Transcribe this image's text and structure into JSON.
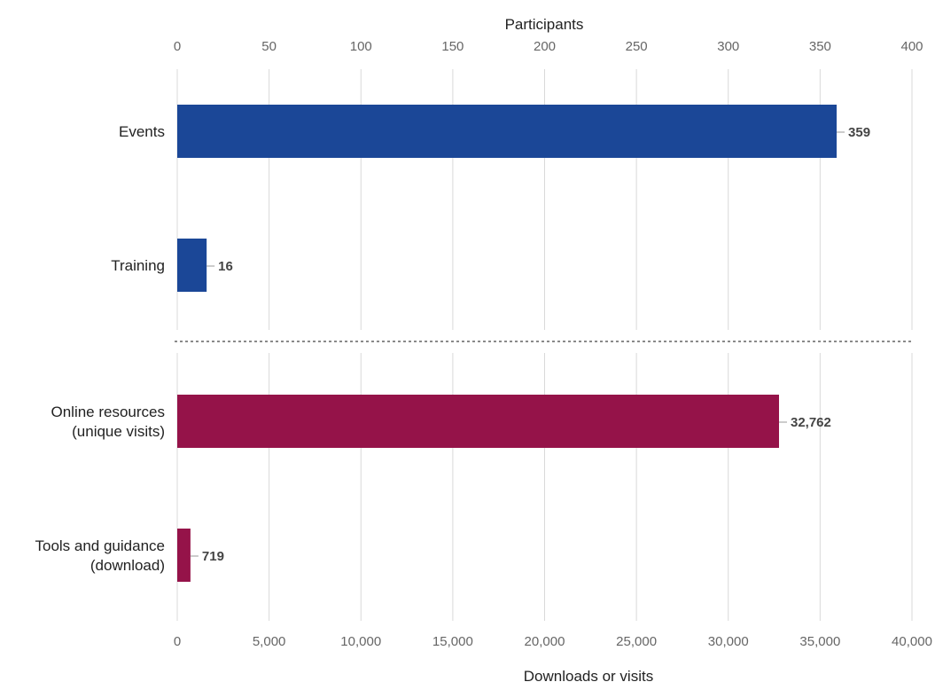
{
  "chart_data": {
    "type": "bar",
    "orientation": "horizontal",
    "grid": true,
    "legend": "none",
    "panels": [
      {
        "axis_position": "top",
        "axis_title": "Participants",
        "xlim": [
          0,
          400
        ],
        "ticks": [
          0,
          50,
          100,
          150,
          200,
          250,
          300,
          350,
          400
        ],
        "tick_labels": [
          "0",
          "50",
          "100",
          "150",
          "200",
          "250",
          "300",
          "350",
          "400"
        ],
        "color": "#1b4797",
        "categories": [
          {
            "label": [
              "Events"
            ],
            "value": 359,
            "value_label": "359"
          },
          {
            "label": [
              "Training"
            ],
            "value": 16,
            "value_label": "16"
          }
        ]
      },
      {
        "axis_position": "bottom",
        "axis_title": "Downloads or visits",
        "xlim": [
          0,
          40000
        ],
        "ticks": [
          0,
          5000,
          10000,
          15000,
          20000,
          25000,
          30000,
          35000,
          40000
        ],
        "tick_labels": [
          "0",
          "5,000",
          "10,000",
          "15,000",
          "20,000",
          "25,000",
          "30,000",
          "35,000",
          "40,000"
        ],
        "color": "#951349",
        "categories": [
          {
            "label": [
              "Online resources",
              "(unique visits)"
            ],
            "value": 32762,
            "value_label": "32,762"
          },
          {
            "label": [
              "Tools and guidance",
              "(download)"
            ],
            "value": 719,
            "value_label": "719"
          }
        ]
      }
    ]
  }
}
